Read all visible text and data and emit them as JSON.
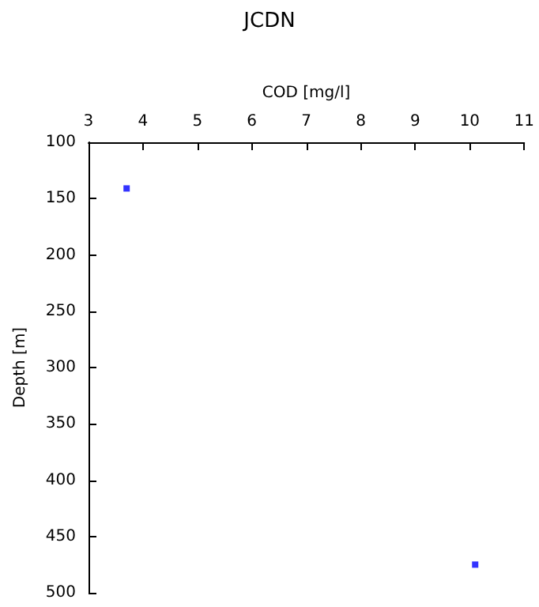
{
  "chart_data": {
    "type": "scatter",
    "title": "JCDN",
    "xlabel": "COD [mg/l]",
    "ylabel": "Depth [m]",
    "x": [
      3.7,
      10.1
    ],
    "series": [
      {
        "color": "#0000ff",
        "values": [
          141,
          475
        ]
      }
    ],
    "xlim": [
      3,
      11
    ],
    "xticks": [
      3,
      4,
      5,
      6,
      7,
      8,
      9,
      10,
      11
    ],
    "ylim": [
      500,
      100
    ],
    "yticks": [
      100,
      150,
      200,
      250,
      300,
      350,
      400,
      450,
      500
    ],
    "grid": false,
    "marker": "square"
  }
}
